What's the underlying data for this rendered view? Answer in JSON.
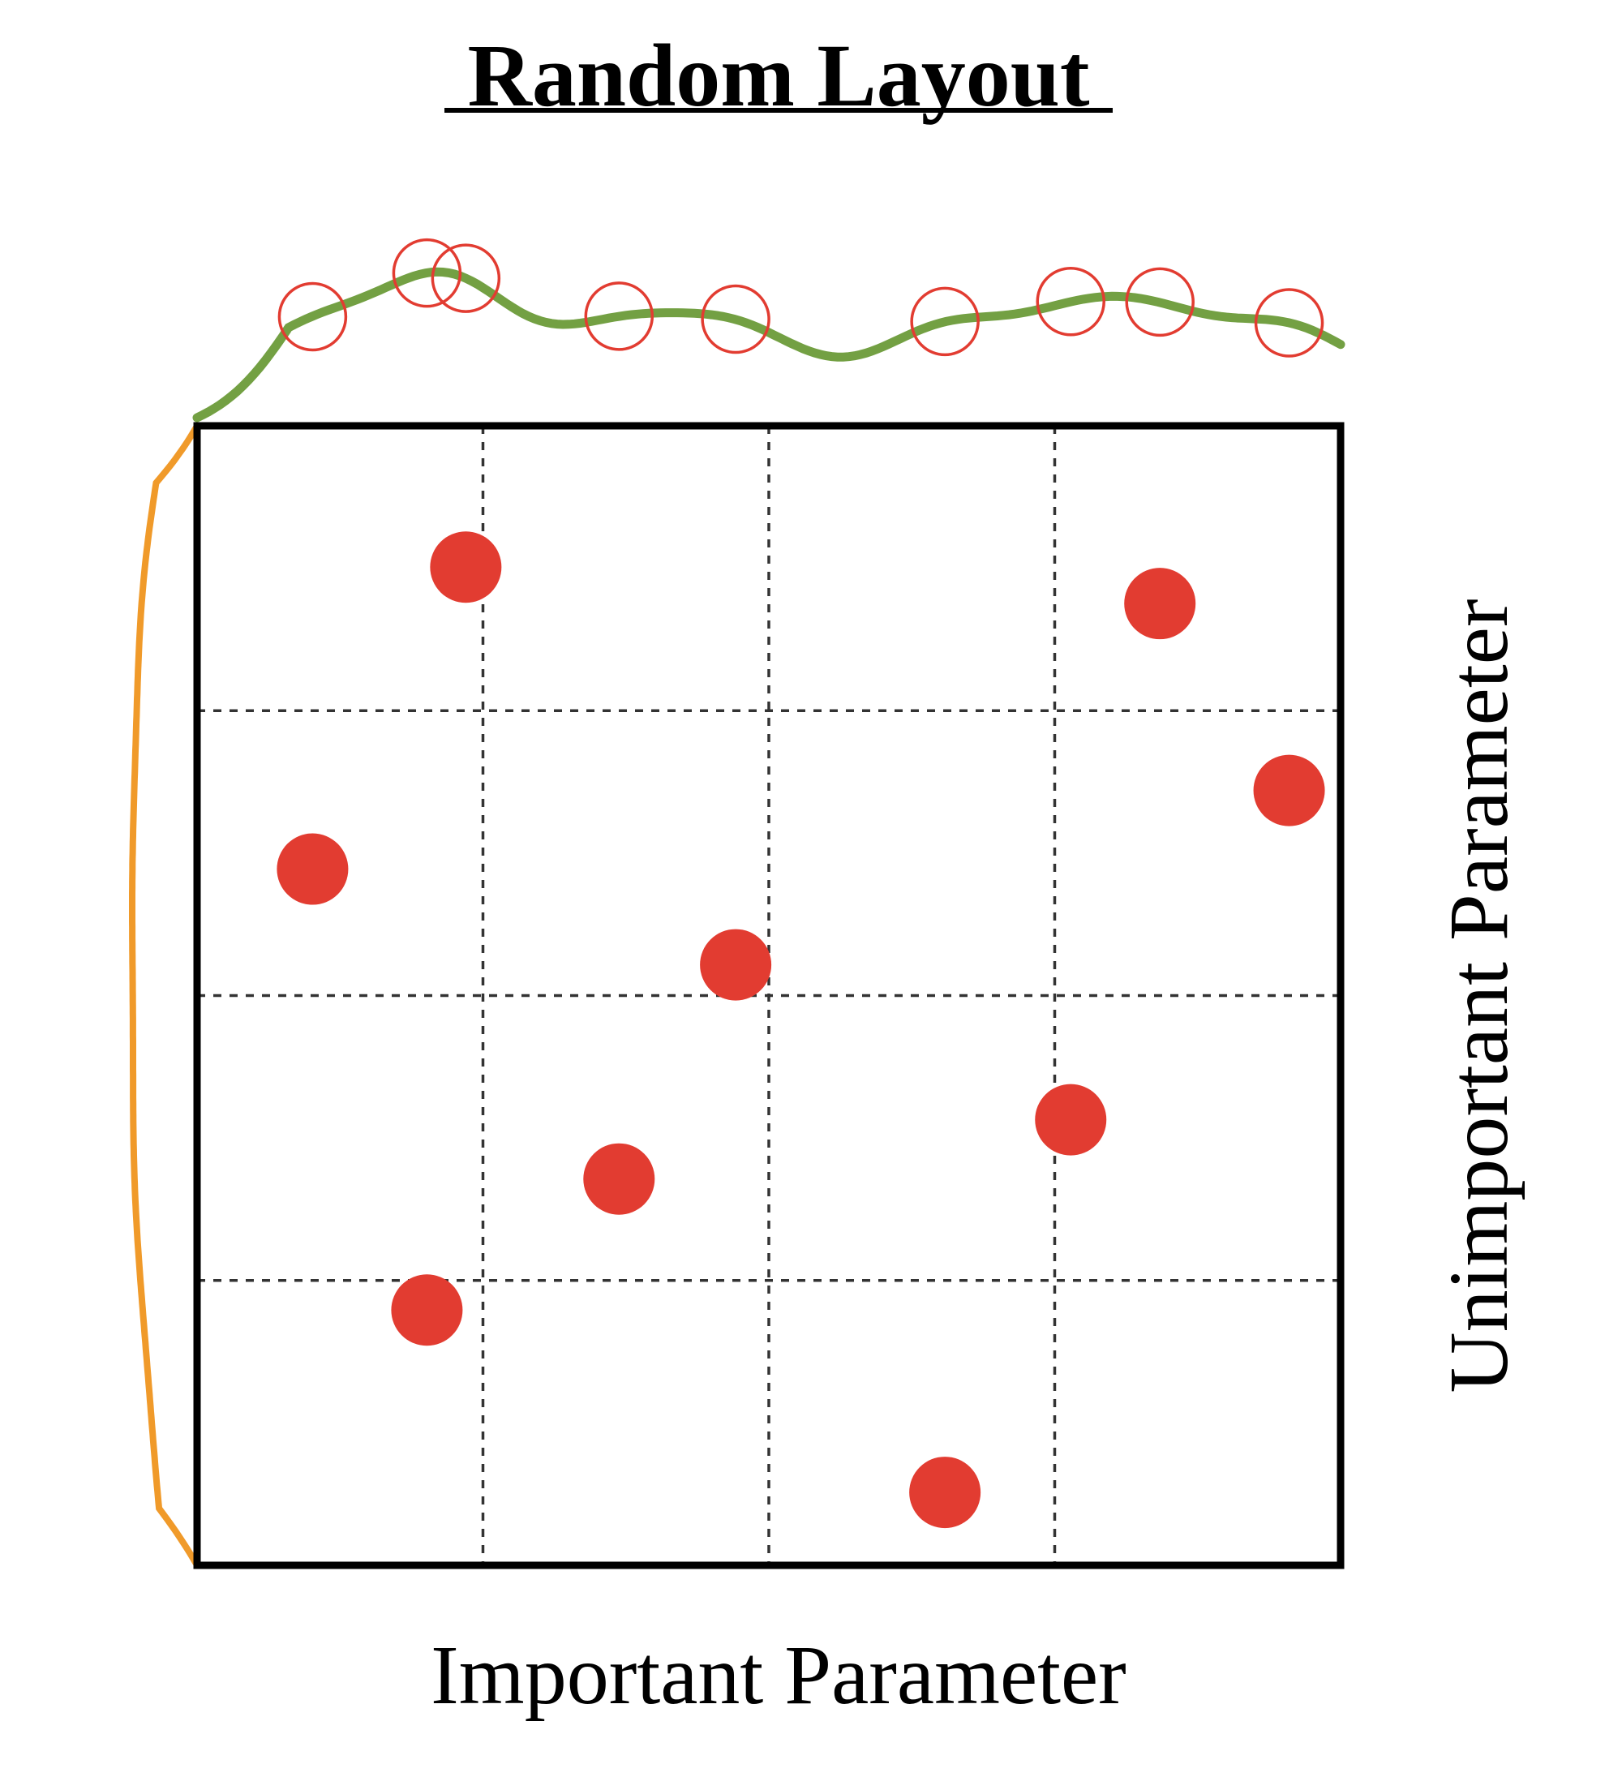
{
  "title": "Random Layout",
  "x_axis_label": "Important Parameter",
  "y_axis_label": "Unimportant Parameter",
  "colors": {
    "sample": "#e23c31",
    "x_marginal": "#73a043",
    "y_marginal": "#f09a2a",
    "frame": "#000000",
    "grid": "#333333"
  },
  "chart_data": {
    "type": "scatter",
    "title": "Random Layout",
    "xlabel": "Important Parameter",
    "ylabel": "Unimportant Parameter",
    "xlim": [
      0,
      1
    ],
    "ylim": [
      0,
      1
    ],
    "grid": true,
    "grid_divisions": 4,
    "points": [
      {
        "x": 0.235,
        "y": 0.876
      },
      {
        "x": 0.842,
        "y": 0.844
      },
      {
        "x": 0.955,
        "y": 0.68
      },
      {
        "x": 0.101,
        "y": 0.611
      },
      {
        "x": 0.471,
        "y": 0.527
      },
      {
        "x": 0.764,
        "y": 0.391
      },
      {
        "x": 0.369,
        "y": 0.339
      },
      {
        "x": 0.201,
        "y": 0.224
      },
      {
        "x": 0.654,
        "y": 0.064
      }
    ],
    "x_marginal": "density of points projected onto the important parameter (shown along the top edge)",
    "y_marginal": "density of points projected onto the unimportant parameter (shown along the left edge)"
  }
}
